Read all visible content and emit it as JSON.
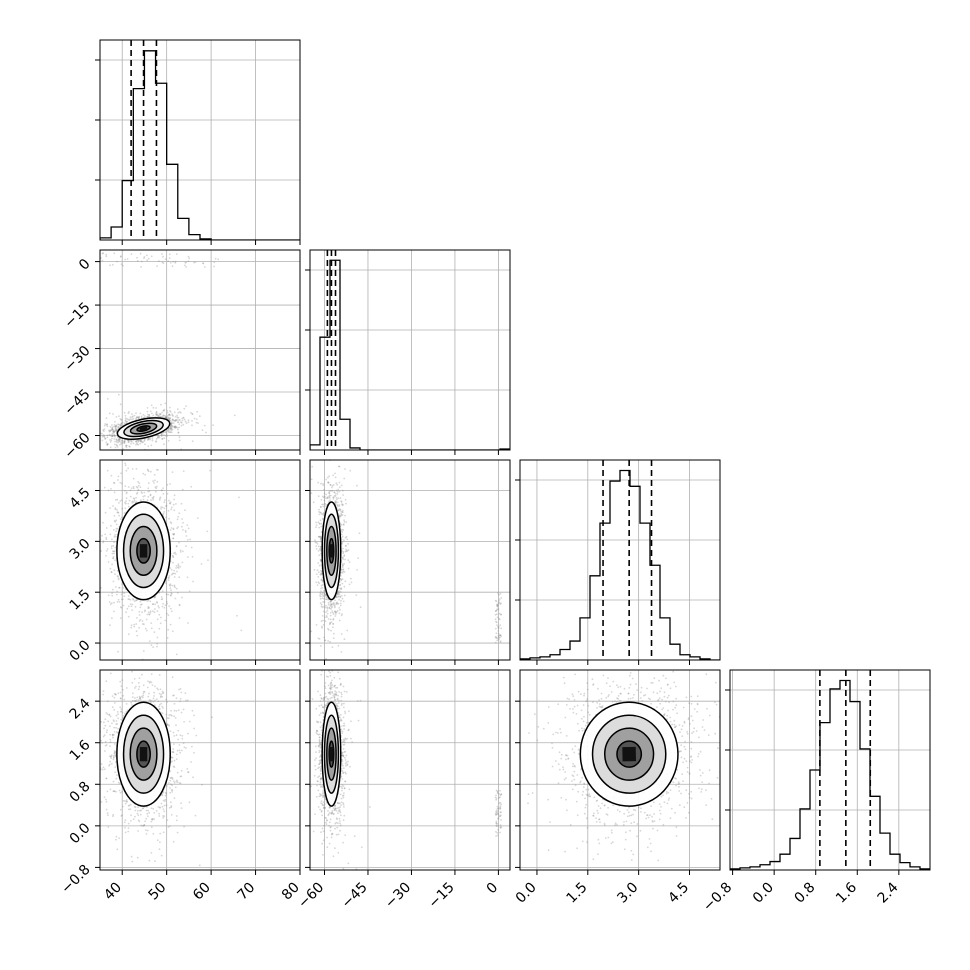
{
  "chart_data": {
    "type": "corner",
    "title": "",
    "parameters": [
      {
        "range": [
          35,
          80
        ],
        "ticks": [
          40,
          50,
          60,
          70,
          80
        ],
        "tick_labels": [
          "40",
          "50",
          "60",
          "70",
          "80"
        ],
        "quantiles": [
          42.0,
          44.8,
          47.7
        ]
      },
      {
        "range": [
          -65,
          4
        ],
        "ticks": [
          -60,
          -45,
          -30,
          -15,
          0
        ],
        "tick_labels": [
          "−60",
          "−45",
          "−30",
          "−15",
          "0"
        ],
        "quantiles": [
          -59.0,
          -57.6,
          -56.2
        ]
      },
      {
        "range": [
          -0.5,
          5.4
        ],
        "ticks": [
          0.0,
          1.5,
          3.0,
          4.5
        ],
        "tick_labels": [
          "0.0",
          "1.5",
          "3.0",
          "4.5"
        ],
        "quantiles": [
          1.95,
          2.72,
          3.38
        ]
      },
      {
        "range": [
          -0.85,
          3.0
        ],
        "ticks": [
          -0.8,
          0.0,
          0.8,
          1.6,
          2.4
        ],
        "tick_labels": [
          "−0.8",
          "0.0",
          "0.8",
          "1.6",
          "2.4"
        ],
        "quantiles": [
          0.88,
          1.38,
          1.85
        ]
      }
    ],
    "histograms": [
      {
        "param": 0,
        "bin_start": 35,
        "bin_width": 2.5,
        "counts": [
          2,
          12,
          55,
          140,
          175,
          145,
          70,
          20,
          5,
          1,
          0,
          0,
          0,
          0,
          0,
          0,
          0,
          0
        ],
        "y_max": 185
      },
      {
        "param": 1,
        "bin_start": -65,
        "bin_width": 3.45,
        "counts": [
          5,
          110,
          185,
          30,
          2,
          0,
          0,
          0,
          0,
          0,
          0,
          0,
          0,
          0,
          0,
          0,
          0,
          0,
          0,
          1
        ],
        "y_max": 195
      },
      {
        "param": 2,
        "bin_start": -0.5,
        "bin_width": 0.295,
        "counts": [
          1,
          2,
          3,
          5,
          10,
          18,
          40,
          80,
          130,
          170,
          180,
          165,
          130,
          90,
          40,
          15,
          5,
          3,
          1,
          0
        ],
        "y_max": 190
      },
      {
        "param": 3,
        "bin_start": -0.85,
        "bin_width": 0.1925,
        "counts": [
          1,
          2,
          3,
          5,
          8,
          15,
          30,
          58,
          95,
          140,
          172,
          180,
          160,
          115,
          70,
          35,
          15,
          7,
          3,
          1
        ],
        "y_max": 190
      }
    ],
    "density_2d": [
      {
        "x": 0,
        "y": 1,
        "center": [
          44.8,
          -57.6
        ],
        "sx": 3.0,
        "sy": 1.6,
        "rho": -0.55,
        "outlier_x": [
          35,
          62
        ],
        "outlier_y": [
          -2,
          3
        ]
      },
      {
        "x": 0,
        "y": 2,
        "center": [
          44.8,
          2.72
        ],
        "sx": 3.0,
        "sy": 0.72,
        "rho": 0.0
      },
      {
        "x": 1,
        "y": 2,
        "center": [
          -57.6,
          2.72
        ],
        "sx": 1.6,
        "sy": 0.72,
        "rho": 0.0,
        "outlier_x": [
          -1,
          1
        ],
        "outlier_y": [
          0,
          1.5
        ]
      },
      {
        "x": 0,
        "y": 3,
        "center": [
          44.8,
          1.38
        ],
        "sx": 3.0,
        "sy": 0.5,
        "rho": 0.0
      },
      {
        "x": 1,
        "y": 3,
        "center": [
          -57.6,
          1.38
        ],
        "sx": 1.6,
        "sy": 0.5,
        "rho": 0.0,
        "outlier_x": [
          -1,
          1
        ],
        "outlier_y": [
          -0.2,
          0.7
        ]
      },
      {
        "x": 2,
        "y": 3,
        "center": [
          2.72,
          1.38
        ],
        "sx": 0.72,
        "sy": 0.5,
        "rho": -0.05
      }
    ],
    "contour_levels_sigma": [
      0.5,
      1.0,
      1.5,
      2.0
    ],
    "grid": true,
    "colors": {
      "line": "#000000",
      "grid": "#b0b0b0",
      "points": "#8c8c8c",
      "density": "#000000"
    }
  }
}
